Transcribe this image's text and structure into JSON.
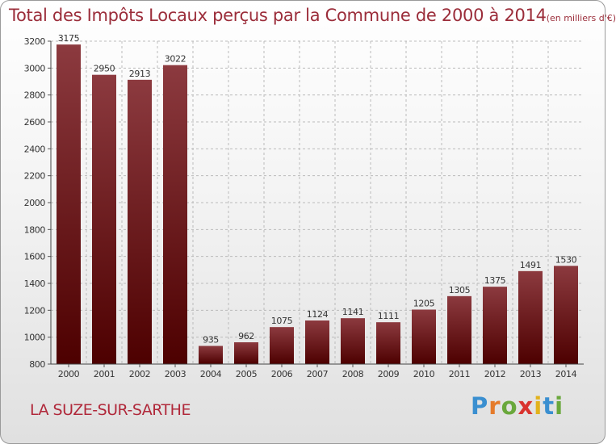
{
  "title": {
    "main": "Total des Impôts Locaux perçus par la Commune de 2000 à 2014",
    "unit": "(en milliers d'€)"
  },
  "commune": "LA SUZE-SUR-SARTHE",
  "logo": {
    "letters": [
      "P",
      "r",
      "o",
      "x",
      "i",
      "t",
      "i"
    ],
    "colors": [
      "#3a8fd0",
      "#e57b2b",
      "#6aa83c",
      "#d9332e",
      "#e2b21c",
      "#3a8fd0",
      "#6aa83c"
    ]
  },
  "colors": {
    "bar_top": "#8c3a3f",
    "bar_bottom": "#4d0000",
    "title": "#9b2d3a"
  },
  "chart_data": {
    "type": "bar",
    "title": "Total des Impôts Locaux perçus par la Commune de 2000 à 2014 (en milliers d'€)",
    "xlabel": "",
    "ylabel": "",
    "categories": [
      "2000",
      "2001",
      "2002",
      "2003",
      "2004",
      "2005",
      "2006",
      "2007",
      "2008",
      "2009",
      "2010",
      "2011",
      "2012",
      "2013",
      "2014"
    ],
    "values": [
      3175,
      2950,
      2913,
      3022,
      935,
      962,
      1075,
      1124,
      1141,
      1111,
      1205,
      1305,
      1375,
      1491,
      1530
    ],
    "ylim": [
      800,
      3200
    ],
    "yticks": [
      800,
      1000,
      1200,
      1400,
      1600,
      1800,
      2000,
      2200,
      2400,
      2600,
      2800,
      3000,
      3200
    ],
    "grid": true
  }
}
